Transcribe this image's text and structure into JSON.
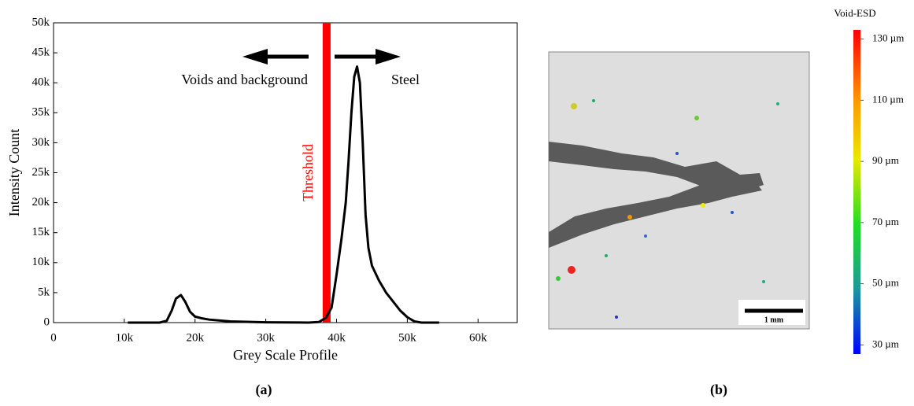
{
  "chart_data": {
    "type": "line",
    "x_label": "Grey Scale Profile",
    "y_label": "Intensity Count",
    "x": [
      10500,
      15000,
      16000,
      16700,
      17300,
      18000,
      18600,
      19300,
      20000,
      21000,
      22000,
      25000,
      30000,
      36000,
      37500,
      38500,
      39300,
      40000,
      40700,
      41300,
      41700,
      42100,
      42500,
      42900,
      43300,
      43700,
      44100,
      44500,
      45000,
      46000,
      47000,
      48000,
      49000,
      50000,
      51000,
      52000,
      54500
    ],
    "series": [
      {
        "color": "#000000",
        "values": [
          0,
          0,
          300,
          2000,
          4000,
          4600,
          3500,
          1800,
          1000,
          700,
          500,
          200,
          50,
          0,
          100,
          800,
          2500,
          8000,
          14000,
          20000,
          27000,
          35000,
          41000,
          42700,
          40000,
          30000,
          18000,
          12500,
          9500,
          7000,
          5000,
          3500,
          2000,
          900,
          200,
          0,
          0
        ]
      }
    ],
    "xlim": [
      0,
      65536
    ],
    "ylim": [
      0,
      50000
    ],
    "xticks": [
      0,
      {
        "value": 10000,
        "label": "10k"
      },
      {
        "value": 20000,
        "label": "20k"
      },
      {
        "value": 30000,
        "label": "30k"
      },
      {
        "value": 40000,
        "label": "40k"
      },
      {
        "value": 50000,
        "label": "50k"
      },
      {
        "value": 60000,
        "label": "60k"
      }
    ],
    "yticks": [
      0,
      {
        "value": 5000,
        "label": "5k"
      },
      {
        "value": 10000,
        "label": "10k"
      },
      {
        "value": 15000,
        "label": "15k"
      },
      {
        "value": 20000,
        "label": "20k"
      },
      {
        "value": 25000,
        "label": "25k"
      },
      {
        "value": 30000,
        "label": "30k"
      },
      {
        "value": 35000,
        "label": "35k"
      },
      {
        "value": 40000,
        "label": "40k"
      },
      {
        "value": 45000,
        "label": "45k"
      },
      {
        "value": 50000,
        "label": "50k"
      }
    ],
    "threshold": {
      "label": "Threshold",
      "value": 38600,
      "color": "#ff0000"
    },
    "annotations": [
      "Voids and background",
      "Steel"
    ]
  },
  "panel_labels": [
    "(a)",
    "(b)"
  ],
  "image": {
    "scale_bar": "1 mm",
    "colorbar": {
      "title": "Void-ESD",
      "range": [
        27,
        133
      ],
      "ticks": [
        {
          "value": 130,
          "label": "130 µm"
        },
        {
          "value": 110,
          "label": "110 µm"
        },
        {
          "value": 90,
          "label": "90 µm"
        },
        {
          "value": 70,
          "label": "70 µm"
        },
        {
          "value": 50,
          "label": "50 µm"
        },
        {
          "value": 30,
          "label": "30 µm"
        }
      ]
    }
  }
}
